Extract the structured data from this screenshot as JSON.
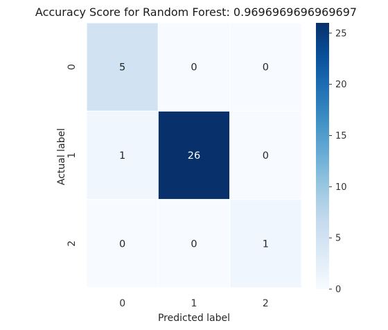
{
  "chart_data": {
    "type": "heatmap",
    "title": "Accuracy Score for Random Forest: 0.9696969696969697",
    "xlabel": "Predicted label",
    "ylabel": "Actual label",
    "x_categories": [
      "0",
      "1",
      "2"
    ],
    "y_categories": [
      "0",
      "1",
      "2"
    ],
    "values": [
      [
        5,
        0,
        0
      ],
      [
        1,
        26,
        0
      ],
      [
        0,
        0,
        1
      ]
    ],
    "colorbar": {
      "min": 0,
      "max": 26,
      "ticks": [
        "0",
        "5",
        "10",
        "15",
        "20",
        "25"
      ],
      "colormap": "Blues",
      "low_color": "#f7fbff",
      "high_color": "#08306b"
    },
    "grid": false
  }
}
